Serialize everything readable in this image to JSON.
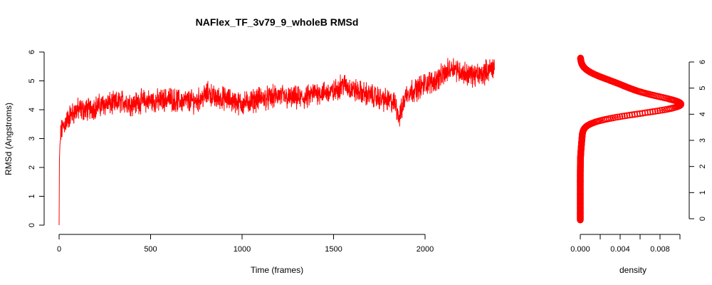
{
  "chart_data": [
    {
      "type": "line",
      "title": "NAFlex_TF_3v79_9_wholeB RMSd",
      "xlabel": "Time (frames)",
      "ylabel": "RMSd (Angstroms)",
      "xlim": [
        0,
        2400
      ],
      "ylim": [
        0,
        6
      ],
      "x_ticks": [
        0,
        500,
        1000,
        1500,
        2000
      ],
      "y_ticks": [
        0,
        1,
        2,
        3,
        4,
        5,
        6
      ],
      "color": "#ff0000",
      "series": [
        {
          "n_frames": 2380,
          "x": [
            0,
            2,
            5,
            10,
            20,
            40,
            60,
            80,
            100,
            150,
            200,
            250,
            300,
            350,
            400,
            450,
            500,
            550,
            600,
            650,
            700,
            750,
            800,
            820,
            850,
            900,
            950,
            1000,
            1050,
            1100,
            1150,
            1200,
            1250,
            1300,
            1350,
            1400,
            1450,
            1500,
            1550,
            1600,
            1650,
            1700,
            1750,
            1800,
            1840,
            1860,
            1880,
            1900,
            1950,
            2000,
            2050,
            2100,
            2150,
            2200,
            2250,
            2300,
            2350,
            2380
          ],
          "values": [
            0.0,
            2.3,
            2.8,
            3.2,
            3.4,
            3.6,
            3.8,
            3.9,
            4.0,
            4.0,
            4.1,
            4.2,
            4.2,
            4.3,
            4.2,
            4.3,
            4.3,
            4.3,
            4.4,
            4.3,
            4.3,
            4.3,
            4.5,
            4.6,
            4.4,
            4.4,
            4.3,
            4.2,
            4.3,
            4.4,
            4.4,
            4.5,
            4.4,
            4.4,
            4.4,
            4.6,
            4.6,
            4.6,
            4.9,
            4.7,
            4.6,
            4.5,
            4.4,
            4.3,
            4.2,
            3.7,
            4.2,
            4.6,
            4.7,
            4.9,
            5.0,
            5.2,
            5.5,
            5.3,
            5.2,
            5.2,
            5.4,
            5.5
          ],
          "noise_amplitude": 0.6
        }
      ]
    },
    {
      "type": "line",
      "xlabel": "density",
      "xlim": [
        0,
        0.0102
      ],
      "ylim": [
        0,
        6
      ],
      "x_ticks": [
        0.0,
        0.002,
        0.004,
        0.006,
        0.008,
        0.01
      ],
      "x_tick_labels": [
        "0.000",
        "0.004",
        "0.008"
      ],
      "y_ticks": [
        0,
        1,
        2,
        3,
        4,
        5,
        6
      ],
      "color": "#ff0000",
      "series": [
        {
          "y_range": [
            -0.05,
            6.15
          ],
          "components": [
            {
              "weight": 0.7,
              "mean": 4.35,
              "sd": 0.33
            },
            {
              "weight": 0.28,
              "mean": 5.05,
              "sd": 0.35
            },
            {
              "weight": 0.02,
              "mean": 3.3,
              "sd": 0.5
            }
          ],
          "peak_density": 0.0101
        }
      ]
    }
  ]
}
